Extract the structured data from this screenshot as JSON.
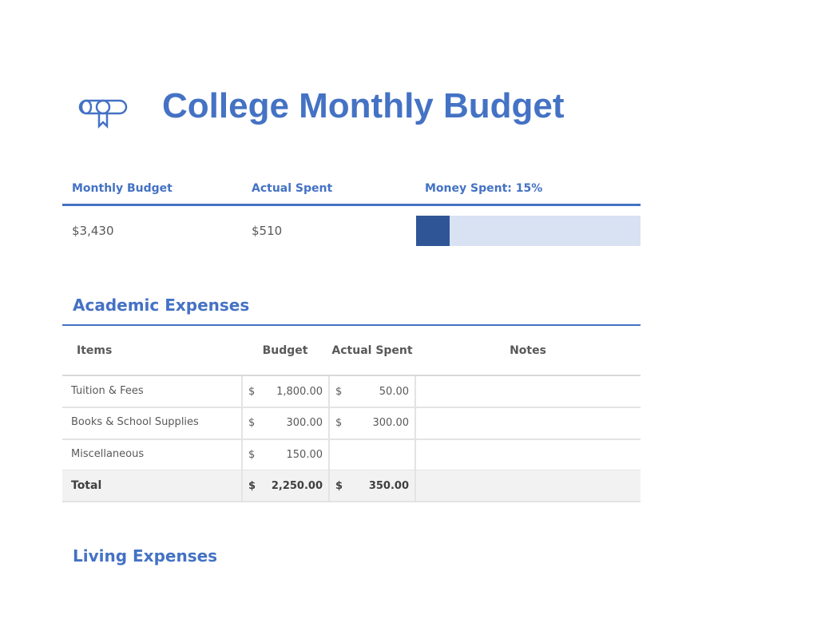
{
  "header": {
    "title": "College Monthly Budget"
  },
  "summary": {
    "headers": [
      "Monthly Budget",
      "Actual Spent",
      "Money Spent: 15%"
    ],
    "values": [
      "$3,430",
      "$510"
    ],
    "progress": {
      "value": 15,
      "lim": [
        0,
        100
      ]
    }
  },
  "sections": [
    {
      "title": "Academic Expenses",
      "table": {
        "columns": [
          "Items",
          "Budget",
          "Actual Spent",
          "Notes"
        ],
        "currency": "$",
        "rows": [
          {
            "item": "Tuition & Fees",
            "budget": "1,800.00",
            "actual": "50.00"
          },
          {
            "item": "Books & School Supplies",
            "budget": "300.00",
            "actual": "300.00"
          },
          {
            "item": "Miscellaneous",
            "budget": "150.00"
          }
        ],
        "total": {
          "label": "Total",
          "budget": "2,250.00",
          "actual": "350.00"
        }
      }
    },
    {
      "title": "Living Expenses"
    }
  ]
}
